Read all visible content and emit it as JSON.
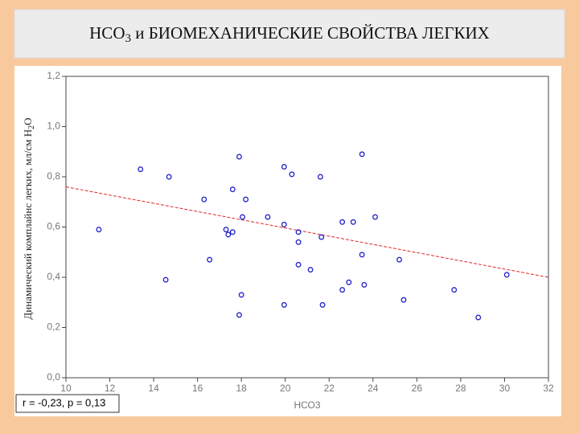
{
  "chart_data": {
    "type": "scatter",
    "title_main": "НСО",
    "title_subscript": "3",
    "title_rest": " и БИОМЕХАНИЧЕСКИЕ СВОЙСТВА ЛЕГКИХ",
    "ylabel_main": "Динамический комплайнс легких, мл/см Н",
    "ylabel_subscript": "2",
    "ylabel_rest": "О",
    "xlabel": "НСО3",
    "annotation": "r = -0,23, p = 0,13",
    "x": [
      11.5,
      13.4,
      14.7,
      14.55,
      16.3,
      16.55,
      17.3,
      17.4,
      17.6,
      17.6,
      17.9,
      17.9,
      18.0,
      18.05,
      18.2,
      19.2,
      19.95,
      19.95,
      19.95,
      20.3,
      20.6,
      20.6,
      20.6,
      21.15,
      21.6,
      21.65,
      21.7,
      22.6,
      22.6,
      22.9,
      23.1,
      23.5,
      23.5,
      23.6,
      24.1,
      25.2,
      25.4,
      27.7,
      28.8,
      30.1
    ],
    "values": [
      0.59,
      0.83,
      0.8,
      0.39,
      0.71,
      0.47,
      0.59,
      0.57,
      0.58,
      0.75,
      0.88,
      0.25,
      0.33,
      0.64,
      0.71,
      0.64,
      0.84,
      0.61,
      0.29,
      0.81,
      0.58,
      0.54,
      0.45,
      0.43,
      0.8,
      0.56,
      0.29,
      0.62,
      0.35,
      0.38,
      0.62,
      0.89,
      0.49,
      0.37,
      0.64,
      0.47,
      0.31,
      0.35,
      0.24,
      0.41
    ],
    "color": "#2424c8",
    "fit_line": {
      "x": [
        10,
        32
      ],
      "y": [
        0.76,
        0.4
      ],
      "color": "#e02828"
    },
    "xlim": [
      10,
      32
    ],
    "xticks": [
      10,
      12,
      14,
      16,
      18,
      20,
      22,
      24,
      26,
      28,
      30,
      32
    ],
    "ylim": [
      0,
      1.2
    ],
    "yticks": [
      {
        "value": 0,
        "label": "0,0"
      },
      {
        "value": 0.2,
        "label": "0,2"
      },
      {
        "value": 0.4,
        "label": "0,4"
      },
      {
        "value": 0.6,
        "label": "0,6"
      },
      {
        "value": 0.8,
        "label": "0,8"
      },
      {
        "value": 1.0,
        "label": "1,0"
      },
      {
        "value": 1.2,
        "label": "1,2"
      }
    ]
  }
}
